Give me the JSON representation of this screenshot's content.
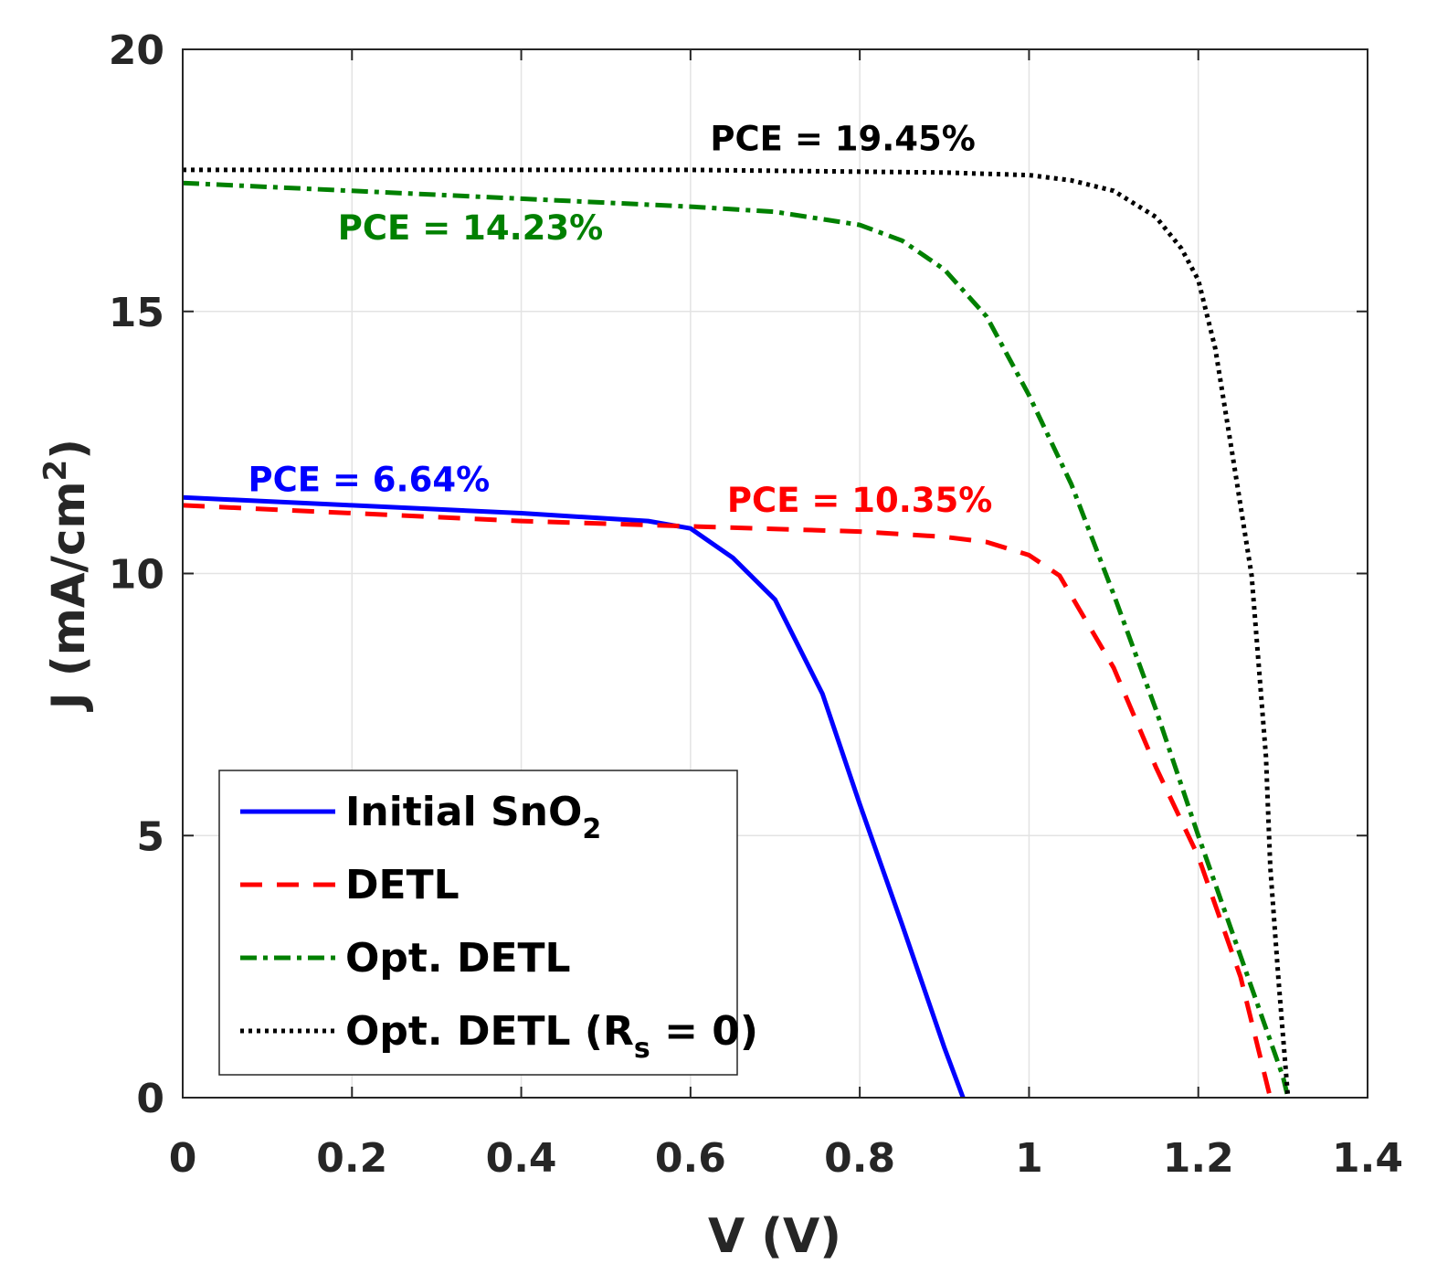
{
  "chart_data": {
    "type": "line",
    "title": "",
    "xlabel": "V (V)",
    "ylabel_main": "J (mA/cm",
    "ylabel_sup": "2",
    "ylabel_close": ")",
    "xlim": [
      0,
      1.4
    ],
    "ylim": [
      0,
      20
    ],
    "xticks": [
      0,
      0.2,
      0.4,
      0.6,
      0.8,
      1,
      1.2,
      1.4
    ],
    "xtick_labels": [
      "0",
      "0.2",
      "0.4",
      "0.6",
      "0.8",
      "1",
      "1.2",
      "1.4"
    ],
    "yticks": [
      0,
      5,
      10,
      15,
      20
    ],
    "ytick_labels": [
      "0",
      "5",
      "10",
      "15",
      "20"
    ],
    "grid": true,
    "legend_position": "lower-left",
    "series": [
      {
        "name": "Initial SnO2",
        "legend_main": "Initial SnO",
        "legend_sub": "2",
        "legend_tail": "",
        "color": "#0000ff",
        "style": "solid",
        "x": [
          0,
          0.2,
          0.4,
          0.5,
          0.55,
          0.6,
          0.65,
          0.7,
          0.756,
          0.8,
          0.85,
          0.9,
          0.922
        ],
        "y": [
          11.45,
          11.3,
          11.15,
          11.05,
          11.0,
          10.86,
          10.3,
          9.5,
          7.7,
          5.6,
          3.3,
          0.95,
          0
        ]
      },
      {
        "name": "DETL",
        "legend_main": "DETL",
        "legend_sub": "",
        "legend_tail": "",
        "color": "#ff0000",
        "style": "dashed",
        "x": [
          0,
          0.2,
          0.4,
          0.6,
          0.8,
          0.9,
          0.95,
          1.0,
          1.036,
          1.06,
          1.1,
          1.15,
          1.2,
          1.25,
          1.285
        ],
        "y": [
          11.3,
          11.15,
          11.0,
          10.9,
          10.8,
          10.7,
          10.6,
          10.35,
          9.96,
          9.3,
          8.2,
          6.3,
          4.6,
          2.3,
          0
        ]
      },
      {
        "name": "Opt. DETL",
        "legend_main": "Opt. DETL",
        "legend_sub": "",
        "legend_tail": "",
        "color": "#008000",
        "style": "dashdot",
        "x": [
          0,
          0.2,
          0.4,
          0.6,
          0.7,
          0.8,
          0.85,
          0.9,
          0.95,
          1.0,
          1.05,
          1.1,
          1.15,
          1.2,
          1.25,
          1.3,
          1.306
        ],
        "y": [
          17.45,
          17.3,
          17.15,
          17.0,
          16.9,
          16.65,
          16.35,
          15.8,
          14.9,
          13.4,
          11.7,
          9.6,
          7.4,
          5.0,
          2.7,
          0.4,
          0
        ]
      },
      {
        "name": "Opt. DETL (Rs = 0)",
        "legend_main": "Opt. DETL (R",
        "legend_sub": "s",
        "legend_tail": " = 0)",
        "color": "#000000",
        "style": "dotted",
        "x": [
          0,
          0.6,
          0.9,
          1.0,
          1.05,
          1.1,
          1.15,
          1.18,
          1.2,
          1.22,
          1.24,
          1.263,
          1.28,
          1.285,
          1.295,
          1.306
        ],
        "y": [
          17.7,
          17.7,
          17.65,
          17.6,
          17.5,
          17.3,
          16.8,
          16.2,
          15.6,
          14.3,
          12.3,
          9.96,
          6.5,
          4.4,
          2.2,
          0
        ]
      }
    ],
    "annotations": [
      {
        "text": "PCE = 19.45%",
        "x": 0.78,
        "y": 18.3,
        "color": "#000000"
      },
      {
        "text": "PCE = 14.23%",
        "x": 0.34,
        "y": 16.6,
        "color": "#008000"
      },
      {
        "text": "PCE = 6.64%",
        "x": 0.22,
        "y": 11.8,
        "color": "#0000ff"
      },
      {
        "text": "PCE = 10.35%",
        "x": 0.8,
        "y": 11.4,
        "color": "#ff0000"
      }
    ]
  }
}
